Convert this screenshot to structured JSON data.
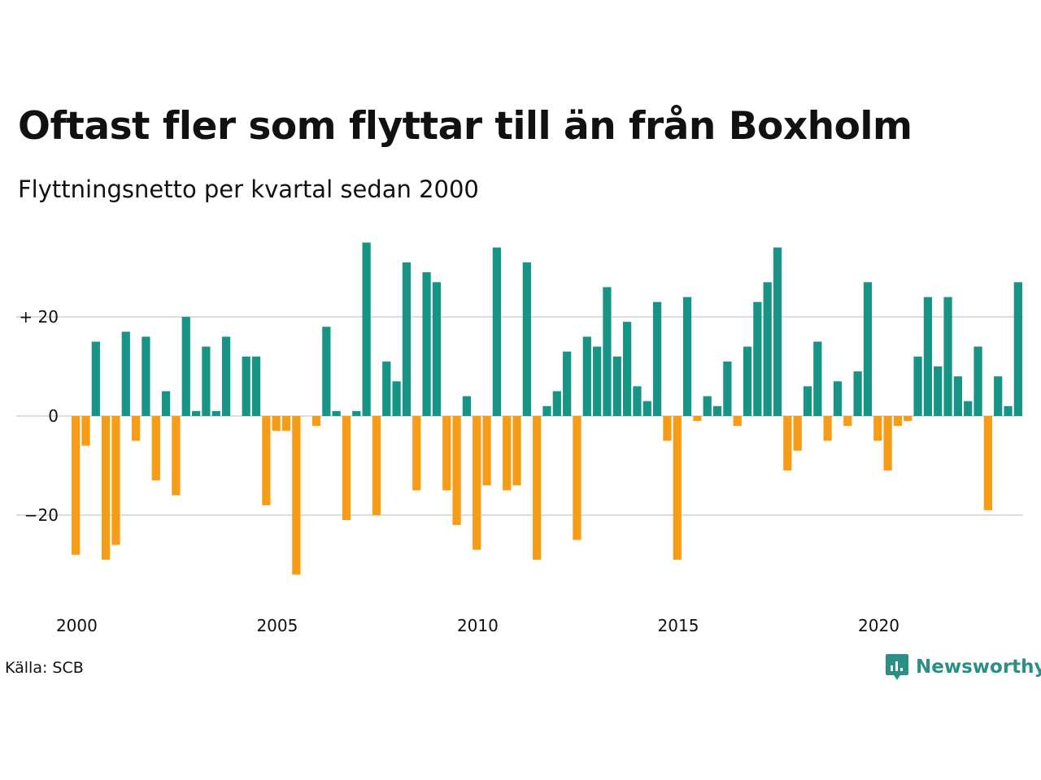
{
  "title": "Oftast fler som flyttar till än från Boxholm",
  "subtitle": "Flyttningsnetto per kvartal sedan 2000",
  "source": "Källa: SCB",
  "brand": {
    "name": "Newsworthy",
    "icon": "newsworthy-logo-icon"
  },
  "colors": {
    "positive": "#179485",
    "negative": "#f69c17",
    "grid": "#dddddd"
  },
  "chart_data": {
    "type": "bar",
    "x_start_year": 2000,
    "periods_per_year": 4,
    "x_tick_labels": [
      "2000",
      "2005",
      "2010",
      "2015",
      "2020"
    ],
    "y_ticks": [
      {
        "value": 20,
        "label": "+ 20"
      },
      {
        "value": 0,
        "label": "0"
      },
      {
        "value": -20,
        "label": "−20"
      }
    ],
    "ylim": [
      -37,
      36
    ],
    "grid": true,
    "values": [
      -28,
      -6,
      15,
      -29,
      -26,
      17,
      -5,
      16,
      -13,
      5,
      -16,
      20,
      1,
      14,
      1,
      16,
      0,
      12,
      12,
      -18,
      -3,
      -3,
      -32,
      0,
      -2,
      18,
      1,
      -21,
      1,
      35,
      -20,
      11,
      7,
      31,
      -15,
      29,
      27,
      -15,
      -22,
      4,
      -27,
      -14,
      34,
      -15,
      -14,
      31,
      -29,
      2,
      5,
      13,
      -25,
      16,
      14,
      26,
      12,
      19,
      6,
      3,
      23,
      -5,
      -29,
      24,
      -1,
      4,
      2,
      11,
      -2,
      14,
      23,
      27,
      34,
      -11,
      -7,
      6,
      15,
      -5,
      7,
      -2,
      9,
      27,
      -5,
      -11,
      -2,
      -1,
      12,
      24,
      10,
      24,
      8,
      3,
      14,
      -19,
      8,
      2,
      27
    ]
  }
}
